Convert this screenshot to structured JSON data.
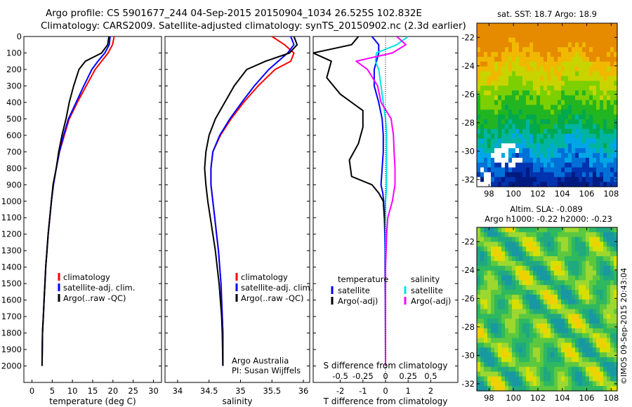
{
  "header": {
    "line1": "Argo profile: CS 5901677_244 04-Sep-2015 20150904_1034 26.525S 102.832E",
    "line2": "Climatology: CARS2009. Satellite-adjusted climatology: synTS_20150902.nc (2.3d earlier)"
  },
  "stamp": "©IMOS 09-Sep-2015 20:43:04",
  "colors": {
    "climatology": "#ff0000",
    "satellite": "#0000ff",
    "argo": "#000000",
    "salinity_satellite": "#00e5e5",
    "salinity_argo": "#ff00ff",
    "zero_line": "#000000"
  },
  "chart_data": [
    {
      "type": "line",
      "panel": "temperature",
      "xlabel": "temperature (deg C)",
      "ylabel": "",
      "xlim": [
        -2,
        32
      ],
      "ylim": [
        2100,
        0
      ],
      "xticks": [
        0,
        5,
        10,
        15,
        20,
        25,
        30
      ],
      "yticks": [
        0,
        100,
        200,
        300,
        400,
        500,
        600,
        700,
        800,
        900,
        1000,
        1100,
        1200,
        1300,
        1400,
        1500,
        1600,
        1700,
        1800,
        1900,
        2000
      ],
      "legend_position": "lower-center",
      "series": [
        {
          "name": "climatology",
          "color": "#ff0000",
          "x": [
            20.3,
            19.9,
            18.8,
            17.2,
            15.6,
            13.4,
            11.2,
            9.2,
            8.0,
            6.8,
            6.0,
            5.3,
            4.8,
            4.4,
            4.0,
            3.7,
            3.4,
            3.2,
            3.0,
            2.8,
            2.6,
            2.5
          ],
          "y": [
            0,
            50,
            100,
            150,
            200,
            300,
            400,
            500,
            600,
            700,
            800,
            900,
            1000,
            1100,
            1200,
            1300,
            1400,
            1500,
            1600,
            1700,
            1800,
            2000
          ]
        },
        {
          "name": "satellite-adj. clim.",
          "color": "#0000ff",
          "x": [
            19.3,
            19.1,
            18.0,
            16.3,
            14.8,
            12.8,
            10.9,
            9.0,
            7.8,
            6.8,
            6.0,
            5.3,
            4.8,
            4.4,
            4.0,
            3.7,
            3.4,
            3.2,
            3.0,
            2.8,
            2.6,
            2.5
          ],
          "y": [
            0,
            50,
            100,
            150,
            200,
            300,
            400,
            500,
            600,
            700,
            800,
            900,
            1000,
            1100,
            1200,
            1300,
            1400,
            1500,
            1600,
            1700,
            1800,
            2000
          ]
        },
        {
          "name": "Argo(..raw -QC)",
          "color": "#000000",
          "x": [
            19.0,
            18.7,
            17.2,
            13.2,
            11.6,
            10.3,
            9.2,
            8.4,
            7.4,
            6.6,
            6.0,
            5.6,
            5.2,
            4.8,
            4.4,
            4.0,
            3.7,
            3.4,
            3.2,
            3.0,
            2.8,
            2.6,
            2.5
          ],
          "y": [
            0,
            50,
            100,
            150,
            200,
            300,
            400,
            500,
            600,
            700,
            800,
            850,
            900,
            1000,
            1100,
            1200,
            1300,
            1400,
            1500,
            1600,
            1700,
            1800,
            2000
          ]
        }
      ]
    },
    {
      "type": "line",
      "panel": "salinity",
      "xlabel": "salinity",
      "ylabel": "",
      "xlim": [
        33.8,
        36.1
      ],
      "ylim": [
        2100,
        0
      ],
      "xticks": [
        34,
        34.5,
        35,
        35.5,
        36
      ],
      "annotations": [
        "Argo Australia",
        "PI: Susan Wijffels"
      ],
      "legend_position": "lower-center",
      "series": [
        {
          "name": "climatology",
          "color": "#ff0000",
          "x": [
            35.5,
            35.7,
            35.85,
            35.8,
            35.55,
            35.28,
            35.05,
            34.85,
            34.68,
            34.56,
            34.53,
            34.53,
            34.56,
            34.59,
            34.62,
            34.65,
            34.67,
            34.69,
            34.7,
            34.71,
            34.72,
            34.72
          ],
          "y": [
            0,
            50,
            100,
            150,
            200,
            300,
            400,
            500,
            600,
            700,
            800,
            900,
            1000,
            1100,
            1200,
            1300,
            1400,
            1500,
            1600,
            1700,
            1800,
            2000
          ]
        },
        {
          "name": "satellite-adj. clim.",
          "color": "#0000ff",
          "x": [
            35.8,
            35.85,
            35.75,
            35.6,
            35.45,
            35.22,
            35.02,
            34.83,
            34.67,
            34.56,
            34.53,
            34.53,
            34.56,
            34.59,
            34.62,
            34.65,
            34.67,
            34.69,
            34.7,
            34.71,
            34.72,
            34.72
          ],
          "y": [
            0,
            50,
            100,
            150,
            200,
            300,
            400,
            500,
            600,
            700,
            800,
            900,
            1000,
            1100,
            1200,
            1300,
            1400,
            1500,
            1600,
            1700,
            1800,
            2000
          ]
        },
        {
          "name": "Argo(..raw -QC)",
          "color": "#000000",
          "x": [
            35.85,
            35.9,
            35.78,
            35.4,
            35.1,
            34.9,
            34.75,
            34.6,
            34.5,
            34.45,
            34.43,
            34.45,
            34.48,
            34.52,
            34.56,
            34.6,
            34.63,
            34.66,
            34.68,
            34.7,
            34.71,
            34.72
          ],
          "y": [
            0,
            50,
            100,
            150,
            200,
            300,
            400,
            500,
            600,
            700,
            800,
            900,
            1000,
            1100,
            1200,
            1300,
            1400,
            1500,
            1600,
            1700,
            1800,
            2000
          ]
        }
      ]
    },
    {
      "type": "line",
      "panel": "difference",
      "xlabel": "T difference from climatology",
      "xlabel_top": "S difference from climatology",
      "xlim": [
        -3.2,
        3.2
      ],
      "ylim": [
        2100,
        0
      ],
      "xticks": [
        -2,
        -1,
        0,
        1,
        2
      ],
      "xtick_labels": [
        "-2",
        "-1",
        "0",
        "1",
        "2"
      ],
      "s_xticks": [
        -0.5,
        -0.25,
        0,
        0.25,
        0.5
      ],
      "s_xtick_labels": [
        "-0.5",
        "-0.25",
        "0",
        "0.25",
        "0.5"
      ],
      "legend_groups": [
        "temperature",
        "salinity"
      ],
      "series": [
        {
          "name": "satellite",
          "group": "temperature",
          "color": "#0000ff",
          "x": [
            -0.6,
            -0.3,
            -0.3,
            -0.4,
            -0.5,
            -0.5,
            -0.3,
            -0.15,
            -0.1,
            -0.1,
            -0.15,
            -0.2,
            -0.12,
            -0.08,
            -0.05,
            -0.03,
            -0.02,
            -0.02,
            -0.01,
            0
          ],
          "y": [
            0,
            50,
            100,
            150,
            200,
            300,
            400,
            500,
            600,
            700,
            800,
            900,
            950,
            1000,
            1100,
            1200,
            1300,
            1400,
            1600,
            2000
          ]
        },
        {
          "name": "Argo(-adj)",
          "group": "temperature",
          "color": "#000000",
          "x": [
            -1.2,
            -1.5,
            -3.2,
            -2.4,
            -2.6,
            -2.0,
            -1.0,
            -1.0,
            -1.2,
            -1.6,
            -1.5,
            -0.6,
            -0.3,
            -0.1,
            0,
            0
          ],
          "y": [
            0,
            50,
            100,
            150,
            250,
            350,
            450,
            550,
            650,
            750,
            850,
            900,
            950,
            1000,
            1200,
            2000
          ]
        },
        {
          "name": "satellite",
          "group": "salinity",
          "color": "#00e5e5",
          "x": [
            1.0,
            0.5,
            -0.4,
            -0.45,
            -0.3,
            -0.2,
            -0.1,
            0,
            0.05,
            0.05,
            0.05,
            0.05,
            0,
            0
          ],
          "y": [
            0,
            50,
            100,
            150,
            200,
            300,
            400,
            500,
            600,
            700,
            800,
            900,
            1000,
            2000
          ]
        },
        {
          "name": "Argo(-adj)",
          "group": "salinity",
          "color": "#ff00ff",
          "x": [
            0.5,
            0.9,
            0.3,
            -1.3,
            -0.8,
            -0.35,
            -0.2,
            0.25,
            0.35,
            0.38,
            0.42,
            0.42,
            0.3,
            0.1,
            0.05,
            0,
            0
          ],
          "y": [
            0,
            50,
            100,
            150,
            200,
            300,
            400,
            500,
            600,
            700,
            800,
            900,
            1000,
            1100,
            1200,
            1400,
            2000
          ]
        }
      ]
    },
    {
      "type": "heatmap",
      "panel": "map-sst",
      "title": "sat. SST: 18.7  Argo: 18.9",
      "xlim": [
        97,
        108.5
      ],
      "ylim": [
        -32.5,
        -21
      ],
      "xticks": [
        98,
        100,
        102,
        104,
        106,
        108
      ],
      "yticks": [
        -22,
        -24,
        -26,
        -28,
        -30,
        -32
      ],
      "marker": {
        "lon": 102.832,
        "lat": -26.525
      }
    },
    {
      "type": "heatmap",
      "panel": "map-sla",
      "title_line1": "Altim. SLA: -0.089",
      "title_line2": "Argo h1000: -0.22 h2000: -0.23",
      "xlim": [
        97,
        108.5
      ],
      "ylim": [
        -32.5,
        -21
      ],
      "xticks": [
        98,
        100,
        102,
        104,
        106,
        108
      ],
      "yticks": [
        -22,
        -24,
        -26,
        -28,
        -30,
        -32
      ],
      "marker": {
        "lon": 102.832,
        "lat": -26.525
      }
    }
  ]
}
